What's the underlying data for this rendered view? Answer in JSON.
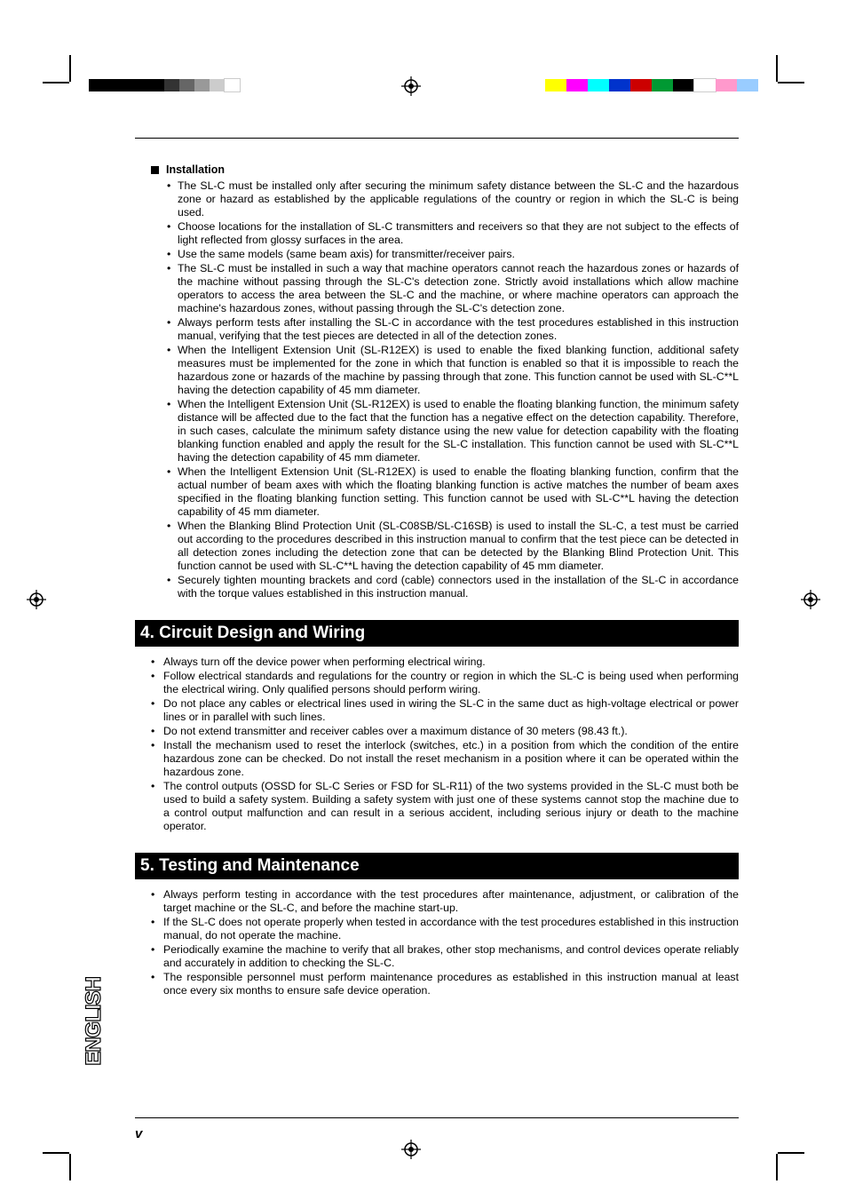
{
  "colorbar_left": [
    "#000000",
    "#000000",
    "#000000",
    "#000000",
    "#000000",
    "#333333",
    "#666666",
    "#999999",
    "#cccccc",
    "#ffffff"
  ],
  "colorbar_right": [
    "#ffff00",
    "#ff00ff",
    "#00ffff",
    "#0033cc",
    "#cc0000",
    "#009933",
    "#000000",
    "#ffffff",
    "#ff99cc",
    "#99ccff"
  ],
  "subheading": "Installation",
  "installation_items": [
    "The SL-C must be installed only after securing the minimum safety distance between the SL-C and the hazardous zone or hazard as established by the applicable regulations of the country or region in which the SL-C is being used.",
    "Choose locations for the installation of SL-C transmitters and receivers so that they are not subject to the effects of light reflected from glossy surfaces in the area.",
    "Use the same models (same beam axis) for transmitter/receiver pairs.",
    "The SL-C must be installed in such a way that machine operators cannot reach the hazardous zones or hazards of the machine without passing through the SL-C's detection zone. Strictly avoid installations which allow machine operators to access the area between the SL-C and the machine, or where machine operators can approach the machine's hazardous zones, without passing through the SL-C's detection zone.",
    "Always perform tests after installing the SL-C in accordance with the test procedures established in this instruction manual, verifying that the test pieces are detected in all of the detection zones.",
    "When the Intelligent Extension Unit (SL-R12EX) is used to enable the fixed blanking function, additional safety measures must be implemented for the zone in which that function is enabled so that it is impossible to reach the hazardous zone or hazards of the machine by passing through that zone. This function cannot be used with SL-C**L having the detection capability of 45 mm diameter.",
    "When the Intelligent Extension Unit (SL-R12EX) is used to enable the floating blanking function, the minimum safety distance will be affected due to the fact that the function has a negative effect on the detection capability. Therefore, in such cases, calculate the minimum safety distance using the new value for detection capability with the floating blanking function enabled and apply the result for the SL-C installation. This function cannot be used with SL-C**L having the detection capability of 45 mm diameter.",
    "When the Intelligent Extension Unit (SL-R12EX) is used to enable the floating blanking function, confirm that the actual number of beam axes with which the floating blanking function is active matches the number of beam axes specified in the floating blanking function setting. This function cannot be used with SL-C**L having the detection capability of 45 mm diameter.",
    "When the Blanking Blind Protection Unit (SL-C08SB/SL-C16SB) is used to install the SL-C, a test must be carried out according to the procedures described in this instruction manual to confirm that the test piece can be detected in all detection zones including the detection zone that can be detected by the Blanking Blind Protection Unit. This function cannot be used with SL-C**L having the detection capability of 45 mm diameter.",
    "Securely tighten mounting brackets and cord (cable) connectors used in the installation of the SL-C in accordance with the torque values established in this instruction manual."
  ],
  "section4_title": " 4. Circuit Design and Wiring",
  "section4_items": [
    "Always turn off the device power when performing electrical wiring.",
    "Follow electrical standards and regulations for the country or region in which the SL-C is being used when performing the electrical wiring. Only qualified persons should perform wiring.",
    "Do not place any cables or electrical lines used in wiring the SL-C in the same duct as high-voltage electrical or power lines or in parallel with such lines.",
    "Do not extend transmitter and receiver cables over a maximum distance of 30 meters (98.43 ft.).",
    "Install the mechanism used to reset the interlock (switches, etc.) in a position from which the condition of the entire hazardous zone can be checked. Do not install the reset mechanism in a position where it can be operated within the hazardous zone.",
    "The control outputs (OSSD for SL-C Series or FSD for SL-R11) of the two systems provided in the SL-C must both be used to build a safety system. Building a safety system with just one of these systems cannot stop the machine due to a control output malfunction and can result in a serious accident, including serious injury or death to the machine operator."
  ],
  "section5_title": " 5. Testing and Maintenance",
  "section5_items": [
    "Always perform testing in accordance with the test procedures after maintenance, adjustment, or calibration of the target machine or the SL-C, and before the machine start-up.",
    "If the SL-C does not operate properly when tested in accordance with the test procedures established in this instruction manual, do not operate the machine.",
    "Periodically examine the machine to verify that all brakes, other stop mechanisms, and control devices operate reliably and accurately in addition to checking the SL-C.",
    "The responsible personnel must perform maintenance procedures as established in this instruction manual at least once every six months to ensure safe device operation."
  ],
  "side_tab": "ENGLISH",
  "page_number": "v"
}
